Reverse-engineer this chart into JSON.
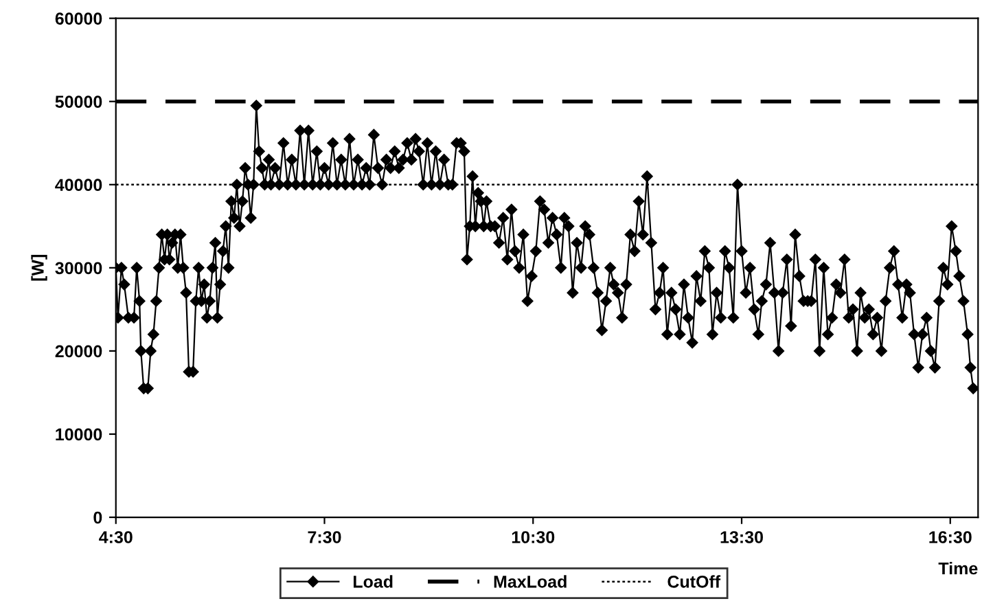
{
  "chart_data": {
    "type": "line",
    "ylabel": "[W]",
    "xlabel": "Time",
    "xlim": [
      4.5,
      16.9
    ],
    "xticks": [
      {
        "value": 4.5,
        "label": "4:30"
      },
      {
        "value": 7.5,
        "label": "7:30"
      },
      {
        "value": 10.5,
        "label": "10:30"
      },
      {
        "value": 13.5,
        "label": "13:30"
      },
      {
        "value": 16.5,
        "label": "16:30"
      }
    ],
    "ylim": [
      0,
      60000
    ],
    "yticks": [
      0,
      10000,
      20000,
      30000,
      40000,
      50000,
      60000
    ],
    "grid": false,
    "legend": "bottom",
    "series": [
      {
        "name": "Load",
        "color": "#000000",
        "marker": "diamond",
        "line_style": "solid",
        "x": [
          4.5,
          4.53,
          4.58,
          4.62,
          4.68,
          4.76,
          4.8,
          4.84,
          4.86,
          4.9,
          4.96,
          5.0,
          5.04,
          5.08,
          5.12,
          5.16,
          5.2,
          5.24,
          5.27,
          5.31,
          5.35,
          5.39,
          5.43,
          5.47,
          5.51,
          5.55,
          5.61,
          5.65,
          5.69,
          5.73,
          5.77,
          5.81,
          5.85,
          5.89,
          5.93,
          5.96,
          6.0,
          6.04,
          6.08,
          6.12,
          6.16,
          6.2,
          6.24,
          6.28,
          6.32,
          6.36,
          6.4,
          6.44,
          6.48,
          6.52,
          6.56,
          6.6,
          6.64,
          6.7,
          6.73,
          6.79,
          6.85,
          6.91,
          6.97,
          7.03,
          7.09,
          7.15,
          7.21,
          7.27,
          7.33,
          7.39,
          7.44,
          7.5,
          7.56,
          7.62,
          7.68,
          7.74,
          7.8,
          7.86,
          7.92,
          7.98,
          8.04,
          8.1,
          8.15,
          8.21,
          8.27,
          8.33,
          8.39,
          8.45,
          8.51,
          8.57,
          8.63,
          8.69,
          8.75,
          8.81,
          8.86,
          8.92,
          8.98,
          9.04,
          9.1,
          9.16,
          9.22,
          9.28,
          9.34,
          9.4,
          9.46,
          9.51,
          9.55,
          9.59,
          9.63,
          9.67,
          9.71,
          9.75,
          9.79,
          9.83,
          9.89,
          9.95,
          10.01,
          10.07,
          10.13,
          10.19,
          10.24,
          10.3,
          10.36,
          10.42,
          10.48,
          10.54,
          10.6,
          10.66,
          10.72,
          10.78,
          10.84,
          10.9,
          10.95,
          11.01,
          11.07,
          11.13,
          11.19,
          11.25,
          11.31,
          11.37,
          11.43,
          11.49,
          11.55,
          11.61,
          11.66,
          11.72,
          11.78,
          11.84,
          11.9,
          11.96,
          12.02,
          12.08,
          12.14,
          12.2,
          12.26,
          12.32,
          12.37,
          12.43,
          12.49,
          12.55,
          12.61,
          12.67,
          12.73,
          12.79,
          12.85,
          12.91,
          12.97,
          13.03,
          13.08,
          13.14,
          13.2,
          13.26,
          13.32,
          13.38,
          13.44,
          13.5,
          13.56,
          13.62,
          13.68,
          13.74,
          13.79,
          13.85,
          13.91,
          13.97,
          14.03,
          14.09,
          14.15,
          14.21,
          14.27,
          14.33,
          14.39,
          14.45,
          14.5,
          14.56,
          14.62,
          14.68,
          14.74,
          14.8,
          14.86,
          14.92,
          14.98,
          15.04,
          15.1,
          15.16,
          15.21,
          15.27,
          15.33,
          15.39,
          15.45,
          15.51,
          15.57,
          15.63,
          15.69,
          15.75,
          15.81,
          15.87,
          15.92,
          15.98,
          16.04,
          16.1,
          16.16,
          16.22,
          16.28,
          16.34,
          16.4,
          16.46,
          16.52,
          16.58,
          16.63,
          16.69,
          16.75,
          16.79,
          16.83
        ],
        "values": [
          30000,
          24000,
          30000,
          28000,
          24000,
          24000,
          30000,
          26000,
          20000,
          15500,
          15500,
          20000,
          22000,
          26000,
          30000,
          34000,
          31000,
          34000,
          31000,
          33000,
          34000,
          30000,
          34000,
          30000,
          27000,
          17500,
          17500,
          26000,
          30000,
          26000,
          28000,
          24000,
          26000,
          30000,
          33000,
          24000,
          28000,
          32000,
          35000,
          30000,
          38000,
          36000,
          40000,
          35000,
          38000,
          42000,
          40000,
          36000,
          40000,
          49500,
          44000,
          42000,
          40000,
          43000,
          40000,
          42000,
          40000,
          45000,
          40000,
          43000,
          40000,
          46500,
          40000,
          46500,
          40000,
          44000,
          40000,
          42000,
          40000,
          45000,
          40000,
          43000,
          40000,
          45500,
          40000,
          43000,
          40000,
          42000,
          40000,
          46000,
          42000,
          40000,
          43000,
          42000,
          44000,
          42000,
          43000,
          45000,
          43000,
          45500,
          44000,
          40000,
          45000,
          40000,
          44000,
          40000,
          43000,
          40000,
          40000,
          45000,
          45000,
          44000,
          31000,
          35000,
          41000,
          35000,
          39000,
          38000,
          35000,
          38000,
          35000,
          35000,
          33000,
          36000,
          31000,
          37000,
          32000,
          30000,
          34000,
          26000,
          29000,
          32000,
          38000,
          37000,
          33000,
          36000,
          34000,
          30000,
          36000,
          35000,
          27000,
          33000,
          30000,
          35000,
          34000,
          30000,
          27000,
          22500,
          26000,
          30000,
          28000,
          27000,
          24000,
          28000,
          34000,
          32000,
          38000,
          34000,
          41000,
          33000,
          25000,
          27000,
          30000,
          22000,
          27000,
          25000,
          22000,
          28000,
          24000,
          21000,
          29000,
          26000,
          32000,
          30000,
          22000,
          27000,
          24000,
          32000,
          30000,
          24000,
          40000,
          32000,
          27000,
          30000,
          25000,
          22000,
          26000,
          28000,
          33000,
          27000,
          20000,
          27000,
          31000,
          23000,
          34000,
          29000,
          26000,
          26000,
          26000,
          31000,
          20000,
          30000,
          22000,
          24000,
          28000,
          27000,
          31000,
          24000,
          25000,
          20000,
          27000,
          24000,
          25000,
          22000,
          24000,
          20000,
          26000,
          30000,
          32000,
          28000,
          24000,
          28000,
          27000,
          22000,
          18000,
          22000,
          24000,
          20000,
          18000,
          26000,
          30000,
          28000,
          35000,
          32000,
          29000,
          26000,
          22000,
          18000,
          15500
        ]
      },
      {
        "name": "MaxLoad",
        "color": "#000000",
        "marker": "none",
        "line_style": "dashed",
        "x": [
          4.5,
          16.9
        ],
        "values": [
          50000,
          50000
        ]
      },
      {
        "name": "CutOff",
        "color": "#000000",
        "marker": "none",
        "line_style": "dotted",
        "x": [
          4.5,
          16.9
        ],
        "values": [
          40000,
          40000
        ]
      }
    ]
  }
}
